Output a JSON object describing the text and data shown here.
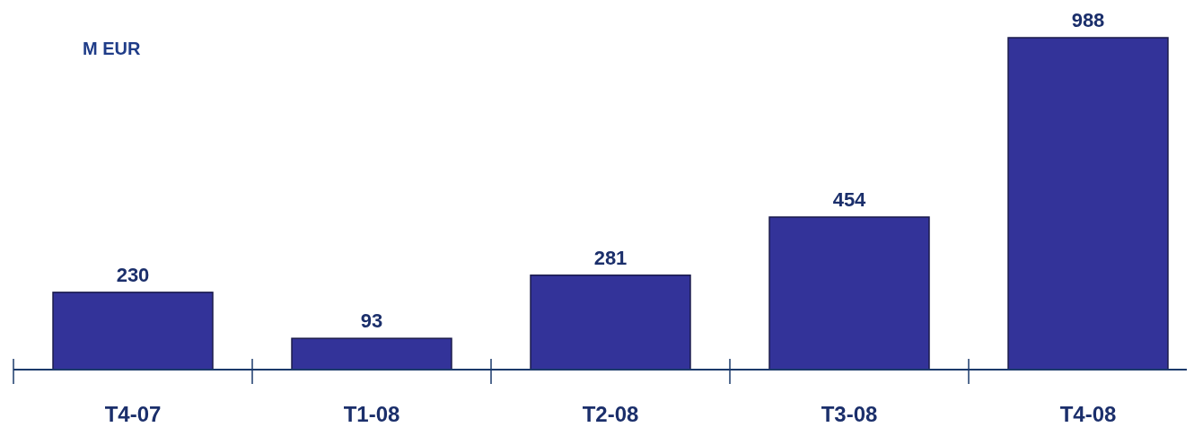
{
  "chart_data": {
    "type": "bar",
    "ylabel": "M EUR",
    "relative": false,
    "categories": [
      "T4-07",
      "T1-08",
      "T2-08",
      "T3-08",
      "T4-08"
    ],
    "values": [
      230,
      93,
      281,
      454,
      988
    ],
    "color": "#333399",
    "data_labels": true
  }
}
